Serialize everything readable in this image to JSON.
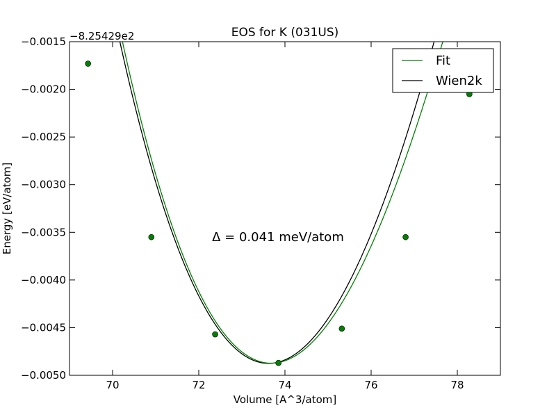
{
  "chart_data": {
    "type": "line",
    "title": "EOS for K (031US)",
    "xlabel": "Volume [A^3/atom]",
    "ylabel": "Energy [eV/atom]",
    "offset_text": "−8.25429e2",
    "xlim": [
      69.0,
      79.0
    ],
    "ylim": [
      -0.005,
      -0.0015
    ],
    "x_ticks": [
      70,
      72,
      74,
      76,
      78
    ],
    "x_tick_labels": [
      "70",
      "72",
      "74",
      "76",
      "78"
    ],
    "y_ticks": [
      -0.005,
      -0.0045,
      -0.004,
      -0.0035,
      -0.003,
      -0.0025,
      -0.002,
      -0.0015
    ],
    "y_tick_labels": [
      "−0.0050",
      "−0.0045",
      "−0.0040",
      "−0.0035",
      "−0.0030",
      "−0.0025",
      "−0.0020",
      "−0.0015"
    ],
    "annotation": "Δ = 0.041 meV/atom",
    "legend": {
      "position": "top-right",
      "entries": [
        {
          "label": "Fit",
          "color": "#008000"
        },
        {
          "label": "Wien2k",
          "color": "#000000"
        }
      ]
    },
    "series": [
      {
        "name": "Fit",
        "color": "#008000",
        "marker": "circle",
        "points": [
          {
            "x": 69.43,
            "y": -0.00173
          },
          {
            "x": 70.9,
            "y": -0.00355
          },
          {
            "x": 72.38,
            "y": -0.00457
          },
          {
            "x": 73.85,
            "y": -0.00487
          },
          {
            "x": 75.32,
            "y": -0.00451
          },
          {
            "x": 76.8,
            "y": -0.00355
          },
          {
            "x": 78.28,
            "y": -0.00205
          }
        ],
        "curve": {
          "x_min": 69.43,
          "v0": 73.68,
          "e0": -0.004873,
          "k": 0.0002505,
          "b": 9.5e-06
        }
      },
      {
        "name": "Wien2k",
        "color": "#000000",
        "curve": {
          "x_min": 69.43,
          "v0": 73.62,
          "e0": -0.004875,
          "k": 0.0002575,
          "b": 7.5e-06
        }
      }
    ]
  }
}
